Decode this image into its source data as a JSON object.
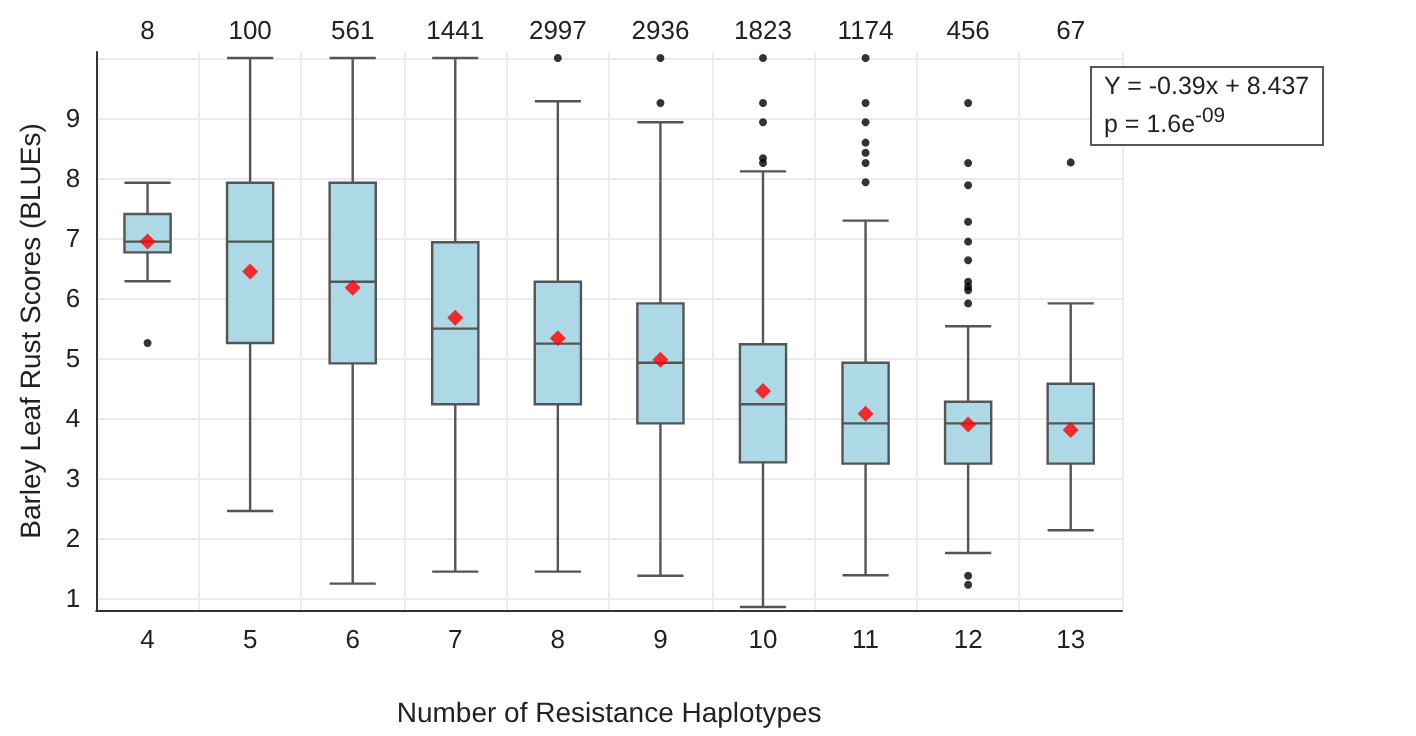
{
  "chart_data": {
    "type": "box",
    "xlabel": "Number of Resistance Haplotypes",
    "ylabel": "Barley Leaf Rust Scores (BLUEs)",
    "categories": [
      "4",
      "5",
      "6",
      "7",
      "8",
      "9",
      "10",
      "11",
      "12",
      "13"
    ],
    "color": "#add8e6",
    "boxes": [
      {
        "low": 6.28,
        "q1": 6.76,
        "median": 6.94,
        "q3": 7.4,
        "high": 7.92,
        "mean": 6.94,
        "outliers": [
          5.25
        ]
      },
      {
        "low": 2.45,
        "q1": 5.25,
        "median": 6.94,
        "q3": 7.92,
        "high": 10,
        "mean": 6.44
      },
      {
        "low": 1.24,
        "q1": 4.91,
        "median": 6.27,
        "q3": 7.92,
        "high": 10,
        "mean": 6.17
      },
      {
        "low": 1.44,
        "q1": 4.23,
        "median": 5.49,
        "q3": 6.93,
        "high": 10,
        "mean": 5.67
      },
      {
        "low": 1.44,
        "q1": 4.23,
        "median": 5.24,
        "q3": 6.27,
        "high": 9.28,
        "mean": 5.33,
        "outliers": [
          10
        ]
      },
      {
        "low": 1.37,
        "q1": 3.91,
        "median": 4.92,
        "q3": 5.91,
        "high": 8.93,
        "mean": 4.97,
        "outliers": [
          10,
          9.25
        ]
      },
      {
        "low": 0.85,
        "q1": 3.26,
        "median": 4.23,
        "q3": 5.23,
        "high": 8.11,
        "mean": 4.45,
        "outliers": [
          10,
          9.25,
          8.93,
          8.33,
          8.25
        ]
      },
      {
        "low": 1.38,
        "q1": 3.24,
        "median": 3.91,
        "q3": 4.92,
        "high": 7.29,
        "mean": 4.07,
        "outliers": [
          10,
          9.25,
          8.93,
          8.59,
          8.42,
          8.25,
          7.93
        ]
      },
      {
        "low": 1.75,
        "q1": 3.24,
        "median": 3.91,
        "q3": 4.27,
        "high": 5.53,
        "mean": 3.89,
        "outliers": [
          9.25,
          8.25,
          7.88,
          7.27,
          6.94,
          6.63,
          6.27,
          6.19,
          6.13,
          5.91,
          1.37,
          1.22
        ]
      },
      {
        "low": 2.13,
        "q1": 3.24,
        "median": 3.91,
        "q3": 4.57,
        "high": 5.91,
        "mean": 3.8,
        "outliers": [
          8.26
        ]
      }
    ],
    "ylim": [
      0.8,
      10.1
    ],
    "yticks": [
      1,
      2,
      3,
      4,
      5,
      6,
      7,
      8,
      9,
      {
        "value": 10,
        "label": null
      }
    ],
    "grid": true,
    "annotations": [
      "8",
      "100",
      "561",
      "1441",
      "2997",
      "2936",
      "1823",
      "1174",
      "456",
      "67",
      "Y = -0.39x + 8.437",
      "p = 1.6e$^{-09}$"
    ]
  }
}
